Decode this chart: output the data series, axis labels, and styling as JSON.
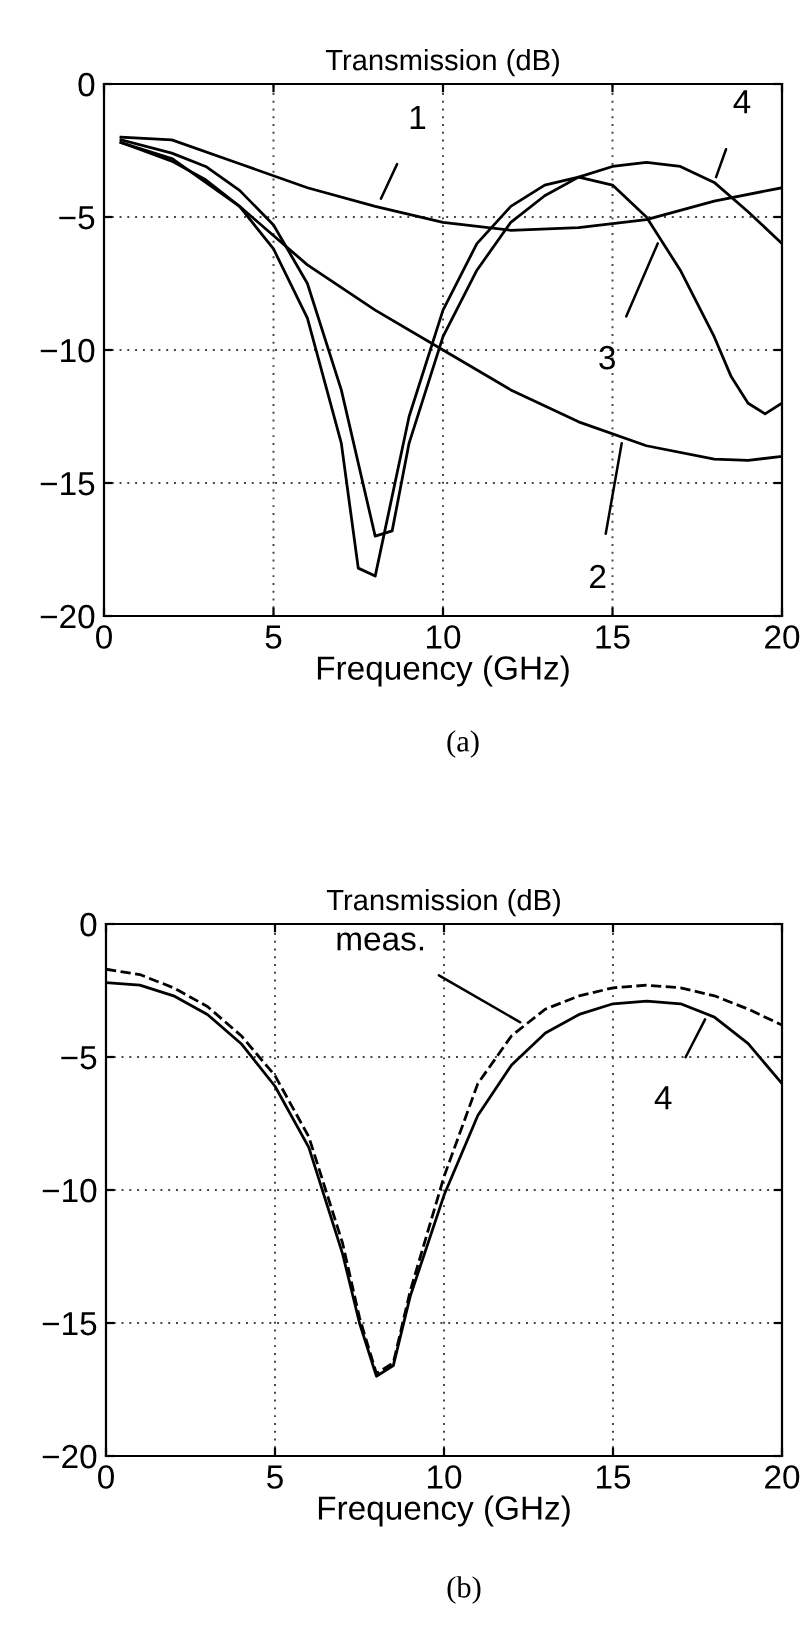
{
  "chart_data": [
    {
      "type": "line",
      "title": "Transmission (dB)",
      "xlabel": "Frequency (GHz)",
      "xlim": [
        0,
        20
      ],
      "ylim": [
        -20,
        0
      ],
      "xticks": [
        0,
        5,
        10,
        15,
        20
      ],
      "yticks": [
        -20,
        -15,
        -10,
        -5,
        0
      ],
      "grid": true,
      "line_style": "solid",
      "series": [
        {
          "color": "#000000",
          "x": [
            0.5,
            2,
            4,
            6,
            8,
            10,
            12,
            14,
            16,
            18,
            20
          ],
          "values": [
            -2.0,
            -2.1,
            -3.0,
            -3.9,
            -4.6,
            -5.2,
            -5.5,
            -5.4,
            -5.1,
            -4.4,
            -3.9
          ]
        },
        {
          "color": "#000000",
          "x": [
            0.5,
            2,
            4,
            6,
            8,
            10,
            12,
            14,
            16,
            18,
            19,
            20
          ],
          "values": [
            -2.2,
            -2.8,
            -4.6,
            -6.8,
            -8.5,
            -10.0,
            -11.5,
            -12.7,
            -13.6,
            -14.1,
            -14.15,
            -14.0
          ]
        },
        {
          "color": "#000000",
          "x": [
            0.5,
            2,
            3,
            4,
            5,
            6,
            7,
            7.5,
            8,
            8.5,
            9,
            10,
            11,
            12,
            13,
            14,
            15,
            16,
            17,
            18,
            18.5,
            19,
            19.5,
            20
          ],
          "values": [
            -2.2,
            -2.9,
            -3.6,
            -4.6,
            -6.2,
            -8.8,
            -13.5,
            -18.2,
            -18.5,
            -15.5,
            -12.5,
            -8.5,
            -6.0,
            -4.6,
            -3.8,
            -3.5,
            -3.8,
            -5.0,
            -7.0,
            -9.5,
            -11.0,
            -12.0,
            -12.4,
            -12.0
          ]
        },
        {
          "color": "#000000",
          "x": [
            0.5,
            2,
            3,
            4,
            5,
            6,
            7,
            8,
            8.5,
            9,
            10,
            11,
            12,
            13,
            14,
            15,
            16,
            17,
            18,
            19,
            20
          ],
          "values": [
            -2.1,
            -2.6,
            -3.1,
            -4.0,
            -5.3,
            -7.5,
            -11.5,
            -17.0,
            -16.8,
            -13.5,
            -9.5,
            -7.0,
            -5.2,
            -4.2,
            -3.5,
            -3.1,
            -2.95,
            -3.1,
            -3.7,
            -4.8,
            -6.0
          ]
        }
      ],
      "annotations": [
        {
          "text": "1",
          "x": 8.1,
          "y": -4.5
        },
        {
          "text": "4",
          "x": 18.0,
          "y": -3.7
        },
        {
          "text": "3",
          "x": 16.4,
          "y": -5.8
        },
        {
          "text": "2",
          "x": 15.3,
          "y": -13.3
        },
        "(a)"
      ]
    },
    {
      "type": "line",
      "title": "Transmission (dB)",
      "xlabel": "Frequency (GHz)",
      "xlim": [
        0,
        20
      ],
      "ylim": [
        -20,
        0
      ],
      "xticks": [
        0,
        5,
        10,
        15,
        20
      ],
      "yticks": [
        -20,
        -15,
        -10,
        -5,
        0
      ],
      "grid": true,
      "series": [
        {
          "color": "#000000",
          "line_style": "dashed",
          "x": [
            0,
            1,
            2,
            3,
            4,
            5,
            6,
            7,
            7.5,
            8,
            8.5,
            9,
            10,
            11,
            12,
            13,
            14,
            15,
            16,
            17,
            18,
            19,
            20
          ],
          "values": [
            -1.7,
            -1.9,
            -2.4,
            -3.1,
            -4.2,
            -5.7,
            -8.0,
            -12.0,
            -14.8,
            -16.9,
            -16.5,
            -13.8,
            -9.5,
            -6.0,
            -4.2,
            -3.2,
            -2.7,
            -2.4,
            -2.3,
            -2.4,
            -2.7,
            -3.2,
            -3.8
          ]
        },
        {
          "color": "#000000",
          "line_style": "solid",
          "x": [
            0,
            1,
            2,
            3,
            4,
            5,
            6,
            7,
            7.5,
            8,
            8.5,
            9,
            10,
            11,
            12,
            13,
            14,
            15,
            16,
            17,
            18,
            19,
            20
          ],
          "values": [
            -2.2,
            -2.3,
            -2.7,
            -3.4,
            -4.5,
            -6.1,
            -8.4,
            -12.4,
            -15.0,
            -17.0,
            -16.6,
            -14.0,
            -10.2,
            -7.2,
            -5.3,
            -4.1,
            -3.4,
            -3.0,
            -2.9,
            -3.0,
            -3.5,
            -4.5,
            -6.0
          ]
        }
      ],
      "annotations": [
        {
          "text": "meas.",
          "x": 12.4,
          "y": -3.8
        },
        {
          "text": "4",
          "x": 17.8,
          "y": -3.4
        },
        "(b)"
      ]
    }
  ]
}
